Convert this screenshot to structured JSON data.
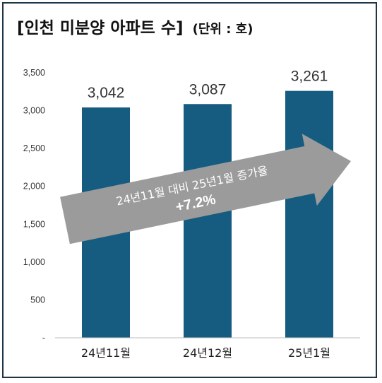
{
  "title": "[인천 미분양 아파트 수]",
  "unit": "(단위 : 호)",
  "colors": {
    "bar": "#155c80",
    "arrow": "#9b9b9b",
    "border": "#1c3547"
  },
  "annotation": {
    "line1": "24년11월 대비 25년1월 증가율",
    "line2": "+7.2%"
  },
  "chart_data": {
    "type": "bar",
    "categories": [
      "24년11월",
      "24년12월",
      "25년1월"
    ],
    "values": [
      3042,
      3087,
      3261
    ],
    "value_labels": [
      "3,042",
      "3,087",
      "3,261"
    ],
    "ylim": [
      0,
      3500
    ],
    "yticks": [
      0,
      500,
      1000,
      1500,
      2000,
      2500,
      3000,
      3500
    ],
    "ytick_labels": [
      "-",
      "500",
      "1,000",
      "1,500",
      "2,000",
      "2,500",
      "3,000",
      "3,500"
    ],
    "grid": false,
    "legend": "none"
  }
}
